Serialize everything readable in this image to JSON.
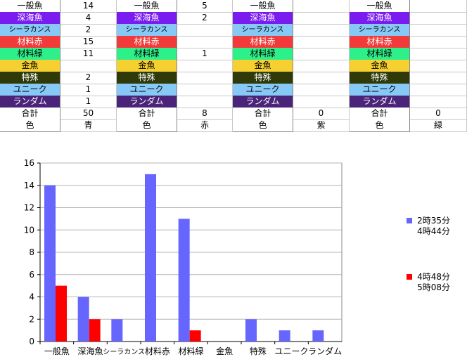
{
  "sheet": {
    "blocks": [
      {
        "rows": [
          {
            "label": "一般魚",
            "value": "14"
          },
          {
            "label": "深海魚",
            "value": "4"
          },
          {
            "label": "シーラカンス",
            "value": "2"
          },
          {
            "label": "材料赤",
            "value": "15"
          },
          {
            "label": "材料緑",
            "value": "11"
          },
          {
            "label": "金魚",
            "value": ""
          },
          {
            "label": "特殊",
            "value": "2"
          },
          {
            "label": "ユニーク",
            "value": "1"
          },
          {
            "label": "ランダム",
            "value": "1"
          },
          {
            "label": "合計",
            "value": "50"
          },
          {
            "label": "色",
            "value": "青"
          }
        ]
      },
      {
        "rows": [
          {
            "label": "一般魚",
            "value": "5"
          },
          {
            "label": "深海魚",
            "value": "2"
          },
          {
            "label": "シーラカンス",
            "value": ""
          },
          {
            "label": "材料赤",
            "value": ""
          },
          {
            "label": "材料緑",
            "value": "1"
          },
          {
            "label": "金魚",
            "value": ""
          },
          {
            "label": "特殊",
            "value": ""
          },
          {
            "label": "ユニーク",
            "value": ""
          },
          {
            "label": "ランダム",
            "value": ""
          },
          {
            "label": "合計",
            "value": "8"
          },
          {
            "label": "色",
            "value": "赤"
          }
        ]
      },
      {
        "rows": [
          {
            "label": "一般魚",
            "value": ""
          },
          {
            "label": "深海魚",
            "value": ""
          },
          {
            "label": "シーラカンス",
            "value": ""
          },
          {
            "label": "材料赤",
            "value": ""
          },
          {
            "label": "材料緑",
            "value": ""
          },
          {
            "label": "金魚",
            "value": ""
          },
          {
            "label": "特殊",
            "value": ""
          },
          {
            "label": "ユニーク",
            "value": ""
          },
          {
            "label": "ランダム",
            "value": ""
          },
          {
            "label": "合計",
            "value": "0"
          },
          {
            "label": "色",
            "value": "紫"
          }
        ]
      },
      {
        "rows": [
          {
            "label": "一般魚",
            "value": ""
          },
          {
            "label": "深海魚",
            "value": ""
          },
          {
            "label": "シーラカンス",
            "value": ""
          },
          {
            "label": "材料赤",
            "value": ""
          },
          {
            "label": "材料緑",
            "value": ""
          },
          {
            "label": "金魚",
            "value": ""
          },
          {
            "label": "特殊",
            "value": ""
          },
          {
            "label": "ユニーク",
            "value": ""
          },
          {
            "label": "ランダム",
            "value": ""
          },
          {
            "label": "合計",
            "value": "0"
          },
          {
            "label": "色",
            "value": "緑"
          }
        ]
      }
    ],
    "row_colors": [
      {
        "bg": "#ffffff",
        "fg": "#000000"
      },
      {
        "bg": "#7a1cf0",
        "fg": "#ffffff"
      },
      {
        "bg": "#86c8f6",
        "fg": "#000000"
      },
      {
        "bg": "#f23a3a",
        "fg": "#ffffff"
      },
      {
        "bg": "#2ef08a",
        "fg": "#000000"
      },
      {
        "bg": "#f6d030",
        "fg": "#000000"
      },
      {
        "bg": "#2f3a08",
        "fg": "#ffffff"
      },
      {
        "bg": "#86c8f6",
        "fg": "#000000"
      },
      {
        "bg": "#4a2478",
        "fg": "#ffffff"
      },
      {
        "bg": "#ffffff",
        "fg": "#000000"
      },
      {
        "bg": "#ffffff",
        "fg": "#000000"
      }
    ]
  },
  "chart_data": {
    "type": "bar",
    "categories": [
      "一般魚",
      "深海魚",
      "シーラカンス",
      "材料赤",
      "材料緑",
      "金魚",
      "特殊",
      "ユニーク",
      "ランダム"
    ],
    "series": [
      {
        "name": "2時35分 4時44分",
        "legend_lines": [
          "2時35分",
          "4時44分"
        ],
        "color": "#6666ff",
        "values": [
          14,
          4,
          2,
          15,
          11,
          0,
          2,
          1,
          1
        ]
      },
      {
        "name": "4時48分 5時08分",
        "legend_lines": [
          "4時48分",
          "5時08分"
        ],
        "color": "#ff0000",
        "values": [
          5,
          2,
          0,
          0,
          1,
          0,
          0,
          0,
          0
        ]
      }
    ],
    "ylim": [
      0,
      16
    ],
    "yticks": [
      0,
      2,
      4,
      6,
      8,
      10,
      12,
      14,
      16
    ],
    "grid": true,
    "legend_position": "right",
    "title": "",
    "xlabel": "",
    "ylabel": ""
  }
}
